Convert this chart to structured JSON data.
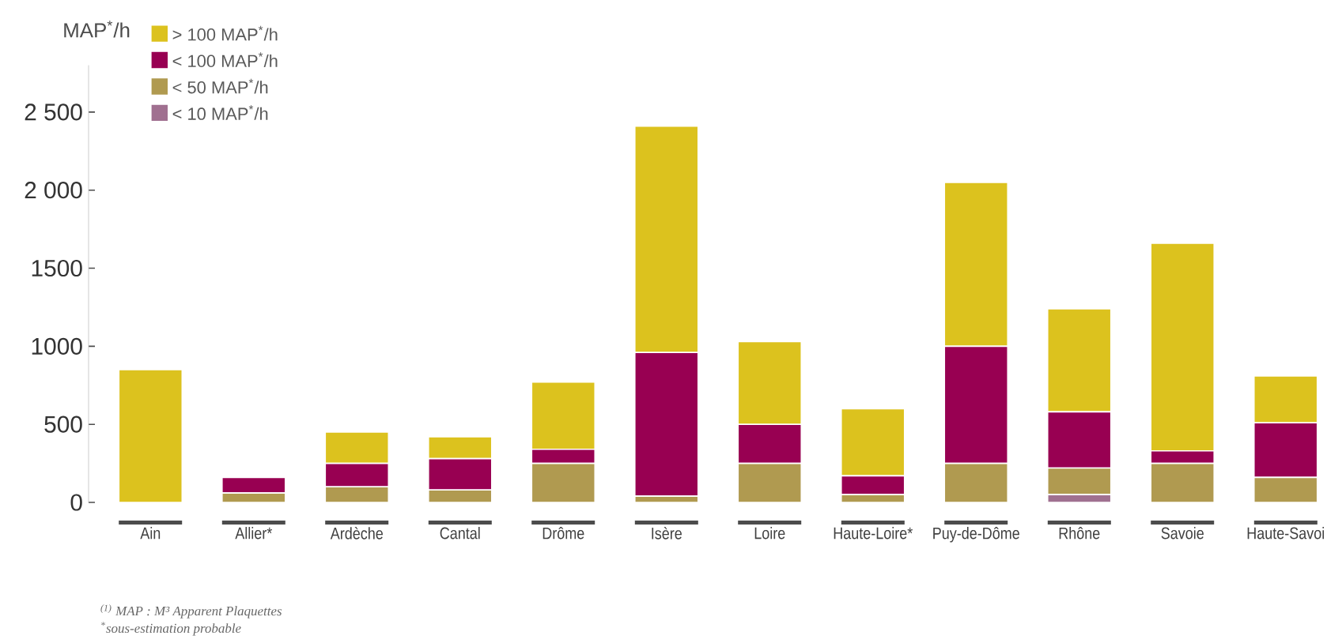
{
  "chart_data": {
    "type": "bar",
    "stacked": true,
    "ylabel": "MAP$^{*}$/h",
    "categories": [
      "Ain",
      "Allier*",
      "Ardèche",
      "Cantal",
      "Drôme",
      "Isère",
      "Loire",
      "Haute-Loire*",
      "Puy-de-Dôme",
      "Rhône",
      "Savoie",
      "Haute-Savoi"
    ],
    "series": [
      {
        "name": "< 10 MAP$^{*}$/h",
        "color": "#a07090",
        "values": [
          0,
          0,
          0,
          0,
          0,
          0,
          0,
          0,
          0,
          50,
          0,
          0
        ]
      },
      {
        "name": "< 50 MAP$^{*}$/h",
        "color": "#b09a50",
        "values": [
          0,
          60,
          100,
          80,
          250,
          40,
          250,
          50,
          250,
          170,
          250,
          160
        ]
      },
      {
        "name": "< 100 MAP$^{*}$/h",
        "color": "#980052",
        "values": [
          0,
          100,
          150,
          200,
          90,
          920,
          250,
          120,
          750,
          360,
          80,
          350
        ]
      },
      {
        "name": "> 100 MAP$^{*}$/h",
        "color": "#dcc21e",
        "values": [
          850,
          0,
          200,
          140,
          430,
          1450,
          530,
          430,
          1050,
          660,
          1330,
          300
        ]
      }
    ],
    "ylim": [
      0,
      2800
    ],
    "yticks": [
      0,
      500,
      {
        "value": 1000,
        "label": "1000"
      },
      {
        "value": 1500,
        "label": "1500"
      },
      {
        "value": 2000,
        "label": "2 000"
      },
      {
        "value": 2500,
        "label": "2 500"
      }
    ],
    "legend": "top left",
    "annotations": [
      "$^{(1)}$ MAP : M³ Apparent Plaquettes",
      "$^{*}$sous-estimation probable"
    ]
  }
}
